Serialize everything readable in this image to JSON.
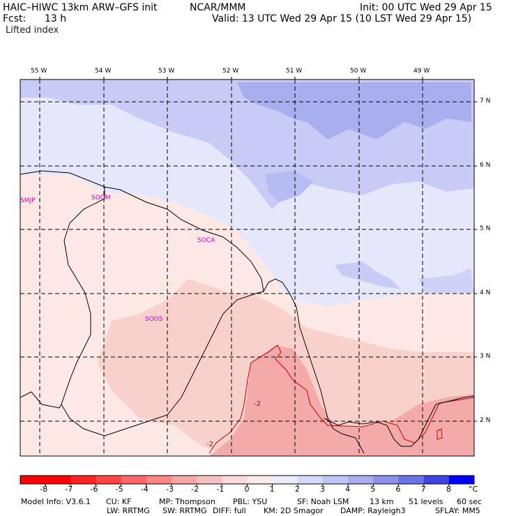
{
  "header": {
    "model_title": "HAIC–HIWC 13km ARW–GFS init",
    "org": "NCAR/MMM",
    "init": "Init: 00 UTC Wed 29 Apr 15",
    "fcst_label": "Fcst:",
    "fcst_value": "13 h",
    "valid": "Valid: 13 UTC Wed 29 Apr 15 (10 LST Wed 29 Apr 15)",
    "field": "Lifted index"
  },
  "map": {
    "lon_labels": [
      "55 W",
      "54 W",
      "53 W",
      "52 W",
      "51 W",
      "50 W",
      "49 W"
    ],
    "lat_labels": [
      "7 N",
      "6 N",
      "5 N",
      "4 N",
      "3 N",
      "2 N"
    ],
    "stations": [
      "SMJP",
      "SOGM",
      "SOCA",
      "SOOS"
    ],
    "contour_labels": [
      "-2",
      "-2"
    ],
    "colors": {
      "blue_light": "#e8e8fa",
      "blue_mid": "#c5c8f4",
      "blue_dark": "#9aa0ec",
      "neutral": "#f4f4fc",
      "pink_light": "#fde9e6",
      "pink_mid": "#f9cfca",
      "pink_dark": "#f4a8a6",
      "station_text": "#cc00cc"
    }
  },
  "colorbar": {
    "unit": "°C",
    "labels": [
      "-8",
      "-7",
      "-6",
      "-5",
      "-4",
      "-3",
      "-2",
      "-1",
      "0",
      "1",
      "2",
      "3",
      "4",
      "5",
      "6",
      "7",
      "8"
    ],
    "colors": [
      "#ff0000",
      "#ff2222",
      "#ff4444",
      "#ff6666",
      "#fb8686",
      "#f8a6a6",
      "#f6c0c0",
      "#fadada",
      "#fde9e9",
      "#ececfc",
      "#d6d8f8",
      "#c0c4f4",
      "#a8aef0",
      "#8c92ec",
      "#6c72e8",
      "#3c44e4",
      "#0000ff"
    ]
  },
  "footer": {
    "line1": [
      "Model Info: V3.6.1",
      "CU: KF",
      "MP: Thompson",
      "PBL: YSU",
      "SF: Noah LSM",
      "13 km",
      "51 levels",
      "60 sec"
    ],
    "line2": [
      "LW: RRTMG",
      "SW: RRTMG",
      "DIFF: full",
      "KM: 2D Smagor",
      "DAMP: Rayleigh3",
      "SFLAY: MM5"
    ]
  }
}
